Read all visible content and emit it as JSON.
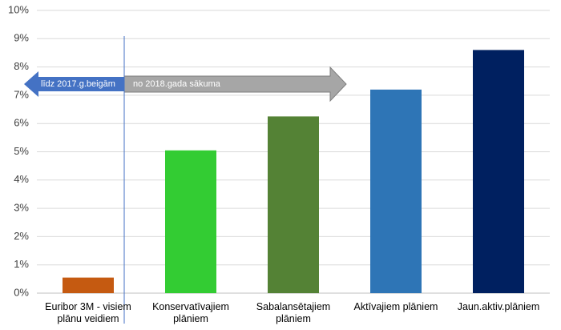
{
  "chart_data": {
    "type": "bar",
    "categories": [
      "Euribor 3M - visiem plānu veidiem",
      "Konservatīvajiem plāniem",
      "Sabalansētajiem plāniem",
      "Aktīvajiem plāniem",
      "Jaun.aktiv.plāniem"
    ],
    "values": [
      0.55,
      5.05,
      6.25,
      7.2,
      8.6
    ],
    "colors": [
      "#c55a11",
      "#33cc33",
      "#548235",
      "#2e75b6",
      "#002060"
    ],
    "ylim": [
      0,
      10
    ],
    "yticks": [
      {
        "value": 0,
        "label": "0%"
      },
      {
        "value": 1,
        "label": "1%"
      },
      {
        "value": 2,
        "label": "2%"
      },
      {
        "value": 3,
        "label": "3%"
      },
      {
        "value": 4,
        "label": "4%"
      },
      {
        "value": 5,
        "label": "5%"
      },
      {
        "value": 6,
        "label": "6%"
      },
      {
        "value": 7,
        "label": "7%"
      },
      {
        "value": 8,
        "label": "8%"
      },
      {
        "value": 9,
        "label": "9%"
      },
      {
        "value": 10,
        "label": "10%"
      }
    ],
    "grid": true,
    "annotations": [
      "līdz 2017.g.beigām",
      "no 2018.gada sākuma"
    ]
  }
}
